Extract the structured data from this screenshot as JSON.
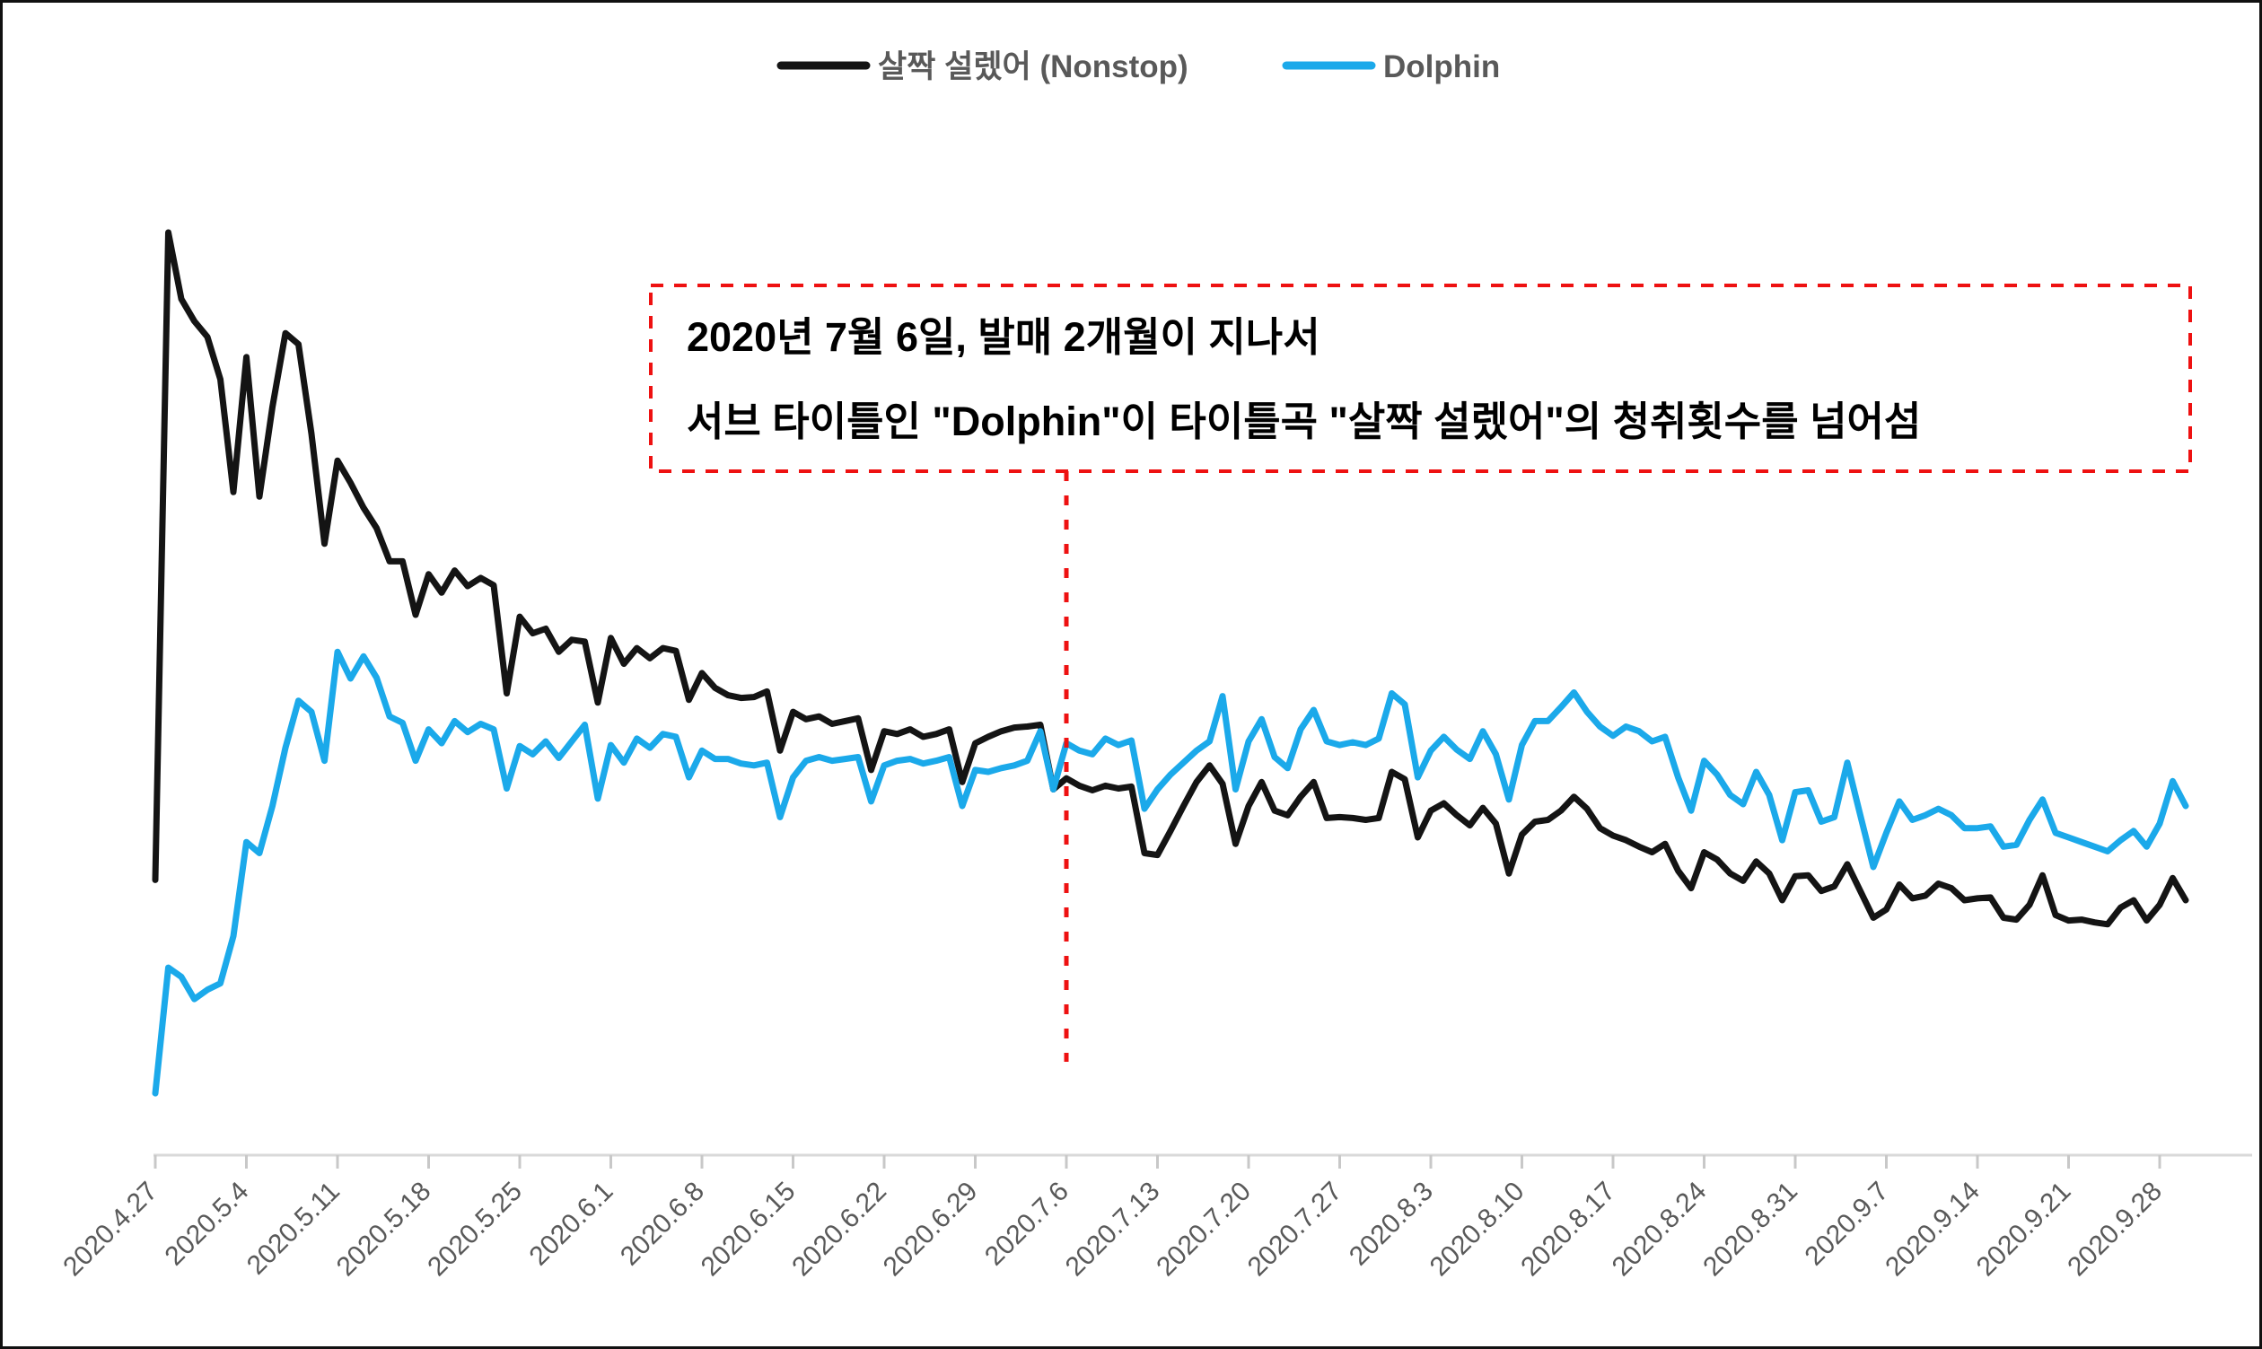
{
  "legend": {
    "items": [
      {
        "label": "살짝 설렜어 (Nonstop)",
        "color": "#141414"
      },
      {
        "label": "Dolphin",
        "color": "#1BA9EA"
      }
    ]
  },
  "chart_data": {
    "type": "line",
    "title": "",
    "xlabel": "",
    "ylabel": "",
    "grid": false,
    "legend_position": "top-center",
    "y_axis_visible": false,
    "ylim": [
      0,
      100
    ],
    "x_unit": "day",
    "x_start_date": "2020.4.27",
    "x_tick_labels": [
      "2020.4.27",
      "2020.5.4",
      "2020.5.11",
      "2020.5.18",
      "2020.5.25",
      "2020.6.1",
      "2020.6.8",
      "2020.6.15",
      "2020.6.22",
      "2020.6.29",
      "2020.7.6",
      "2020.7.13",
      "2020.7.20",
      "2020.7.27",
      "2020.8.3",
      "2020.8.10",
      "2020.8.17",
      "2020.8.24",
      "2020.8.31",
      "2020.9.7",
      "2020.9.14",
      "2020.9.21",
      "2020.9.28"
    ],
    "series": [
      {
        "name": "살짝 설렜어 (Nonstop)",
        "color": "#141414",
        "values": [
          29.8,
          99.9,
          92.7,
          90.3,
          88.6,
          84,
          71.8,
          86.4,
          71.3,
          81,
          89,
          87.8,
          78.1,
          66.2,
          75.2,
          72.8,
          70.1,
          67.9,
          64.3,
          64.3,
          58.5,
          62.9,
          60.9,
          63.3,
          61.6,
          62.5,
          61.7,
          50,
          58.3,
          56.5,
          57,
          54.5,
          55.8,
          55.6,
          49,
          56,
          53.2,
          54.9,
          53.8,
          54.9,
          54.6,
          49.3,
          52.2,
          50.6,
          49.8,
          49.5,
          49.6,
          50.2,
          43.8,
          48,
          47.2,
          47.5,
          46.7,
          47,
          47.3,
          41.7,
          45.9,
          45.6,
          46.1,
          45.3,
          45.6,
          46.1,
          40.4,
          44.6,
          45.3,
          45.9,
          46.3,
          46.4,
          46.6,
          39.6,
          40.8,
          40,
          39.5,
          40,
          39.7,
          39.9,
          32.7,
          32.5,
          35.1,
          37.8,
          40.4,
          42.2,
          40.2,
          33.7,
          37.8,
          40.4,
          37.3,
          36.8,
          38.8,
          40.4,
          36.5,
          36.6,
          36.5,
          36.3,
          36.5,
          41.5,
          40.7,
          34.4,
          37.3,
          38.1,
          36.8,
          35.7,
          37.6,
          35.9,
          30.5,
          34.7,
          36.1,
          36.3,
          37.3,
          38.8,
          37.5,
          35.4,
          34.6,
          34.1,
          33.4,
          32.8,
          33.7,
          30.8,
          28.9,
          32.8,
          32,
          30.5,
          29.7,
          31.8,
          30.5,
          27.6,
          30.2,
          30.3,
          28.6,
          29.1,
          31.5,
          28.6,
          25.7,
          26.6,
          29.3,
          27.8,
          28.1,
          29.4,
          28.9,
          27.6,
          27.8,
          27.9,
          25.7,
          25.5,
          27.1,
          30.3,
          26,
          25.4,
          25.5,
          25.2,
          25,
          26.8,
          27.6,
          25.4,
          27.1,
          30,
          27.6
        ]
      },
      {
        "name": "Dolphin",
        "color": "#1BA9EA",
        "values": [
          6.7,
          20.3,
          19.3,
          16.9,
          17.9,
          18.6,
          23.7,
          33.9,
          32.7,
          37.8,
          44.1,
          49.2,
          48,
          42.7,
          54.5,
          51.6,
          54,
          51.7,
          47.5,
          46.8,
          42.7,
          46.1,
          44.6,
          47,
          45.8,
          46.7,
          46.1,
          39.7,
          44.3,
          43.4,
          44.8,
          43,
          44.8,
          46.6,
          38.6,
          44.4,
          42.5,
          45.1,
          44.1,
          45.6,
          45.3,
          40.9,
          43.8,
          42.9,
          42.9,
          42.4,
          42.2,
          42.5,
          36.6,
          40.9,
          42.7,
          43.1,
          42.7,
          42.9,
          43.1,
          38.3,
          42.2,
          42.7,
          42.9,
          42.4,
          42.7,
          43.1,
          37.8,
          41.7,
          41.5,
          41.9,
          42.2,
          42.7,
          45.9,
          39.6,
          44.6,
          43.8,
          43.4,
          45.1,
          44.4,
          44.9,
          37.5,
          39.6,
          41.2,
          42.5,
          43.8,
          44.8,
          49.7,
          39.6,
          44.8,
          47.2,
          43.1,
          41.9,
          46.1,
          48.2,
          44.8,
          44.4,
          44.7,
          44.4,
          45.1,
          50,
          48.8,
          40.9,
          43.8,
          45.3,
          43.9,
          42.9,
          45.9,
          43.4,
          38.5,
          44.4,
          47,
          47,
          48.5,
          50.1,
          48,
          46.4,
          45.4,
          46.4,
          45.9,
          44.8,
          45.3,
          40.9,
          37.3,
          42.7,
          41.2,
          39,
          38,
          41.5,
          39,
          34.1,
          39.3,
          39.5,
          36.1,
          36.6,
          42.5,
          36.8,
          31.2,
          34.9,
          38.3,
          36.3,
          36.8,
          37.5,
          36.8,
          35.4,
          35.4,
          35.6,
          33.4,
          33.6,
          36.3,
          38.5,
          34.9,
          34.4,
          33.9,
          33.4,
          32.9,
          34.1,
          35.1,
          33.4,
          35.9,
          40.5,
          37.8
        ]
      }
    ],
    "annotation": {
      "line1": "2020년 7월 6일, 발매  2개월이 지나서",
      "line2": "서브 타이틀인  \"Dolphin\"이 타이틀곡 \"살짝 설렜어\"의 청취횟수를 넘어섬",
      "marker_tick_label": "2020.7.6",
      "marker_tick_index": 10,
      "color": "#EE1111"
    }
  }
}
